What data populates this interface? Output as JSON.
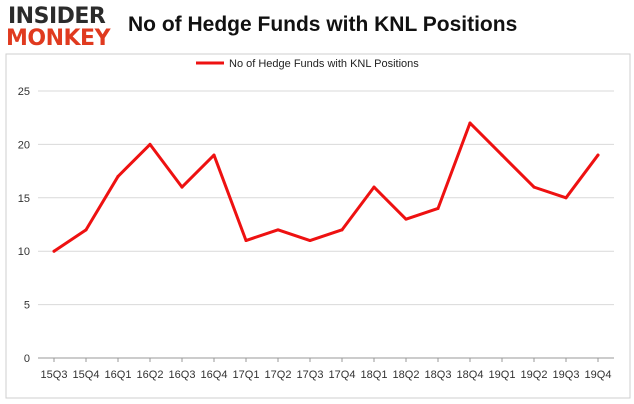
{
  "brand": {
    "logo_top": "INSIDER",
    "logo_bottom": "MONKEY",
    "logo_top_color": "#2b2b2b",
    "logo_bottom_color": "#e03a1f"
  },
  "chart_data": {
    "type": "line",
    "title": "No of Hedge Funds with KNL Positions",
    "xlabel": "",
    "ylabel": "",
    "categories": [
      "15Q3",
      "15Q4",
      "16Q1",
      "16Q2",
      "16Q3",
      "16Q4",
      "17Q1",
      "17Q2",
      "17Q3",
      "17Q4",
      "18Q1",
      "18Q2",
      "18Q3",
      "18Q4",
      "19Q1",
      "19Q2",
      "19Q3",
      "19Q4"
    ],
    "series": [
      {
        "name": "No of Hedge Funds with KNL Positions",
        "color": "#ee1111",
        "values": [
          10,
          12,
          17,
          20,
          16,
          19,
          11,
          12,
          11,
          12,
          16,
          13,
          14,
          22,
          19,
          16,
          15,
          19
        ]
      }
    ],
    "ylim": [
      0,
      25
    ],
    "yticks": [
      0,
      5,
      10,
      15,
      20,
      25
    ],
    "grid": true,
    "legend": "top-center"
  }
}
